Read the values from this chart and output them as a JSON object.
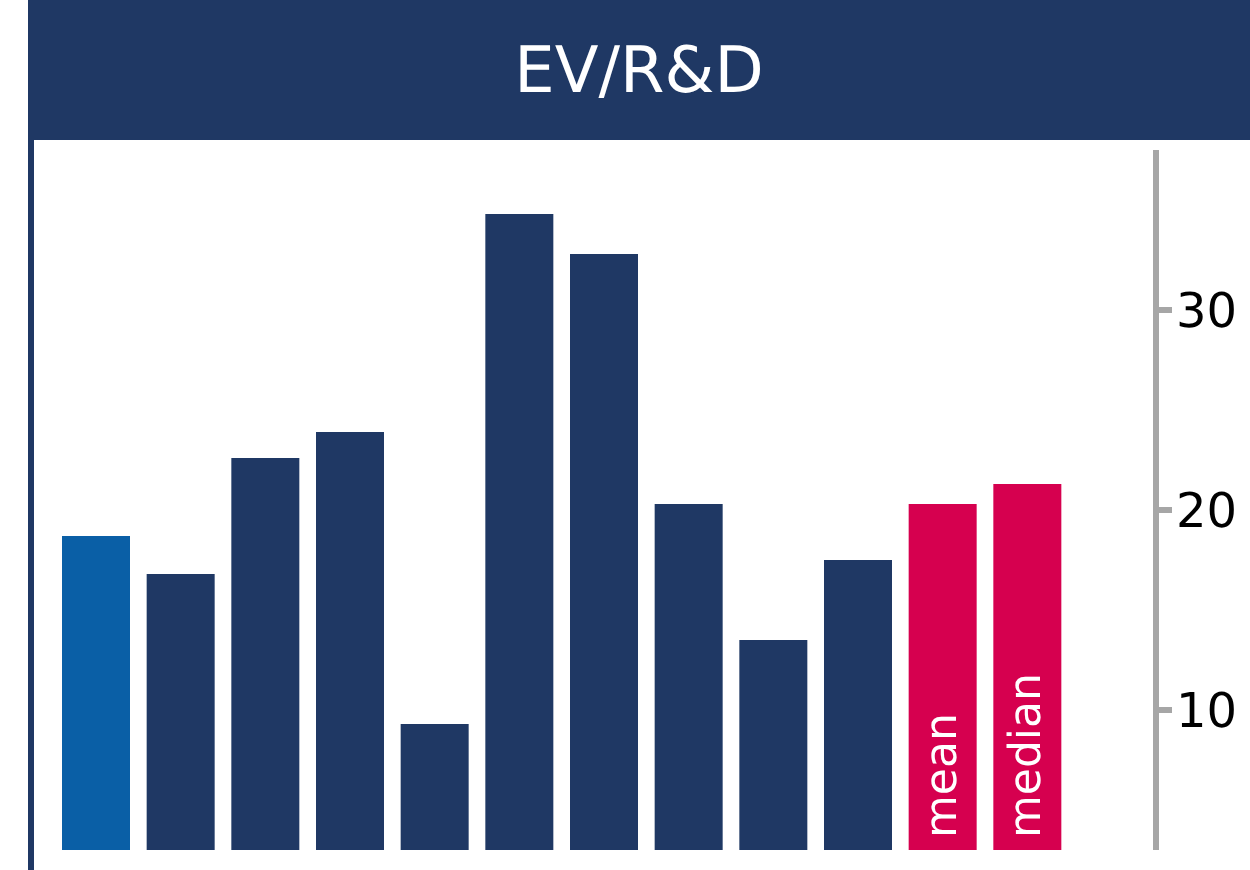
{
  "chart_data": {
    "type": "bar",
    "title": "EV/R&D",
    "categories": [
      null,
      null,
      null,
      null,
      null,
      null,
      null,
      null,
      null,
      null,
      "mean",
      "median"
    ],
    "values": [
      18.7,
      16.8,
      22.6,
      23.9,
      9.3,
      34.8,
      32.8,
      20.3,
      13.5,
      17.5,
      20.3,
      21.3
    ],
    "colors": [
      "#0a5fa6",
      "#1f3864",
      "#1f3864",
      "#1f3864",
      "#1f3864",
      "#1f3864",
      "#1f3864",
      "#1f3864",
      "#1f3864",
      "#1f3864",
      "#d6004f",
      "#d6004f"
    ],
    "ylim": [
      3,
      38
    ],
    "yticks": [
      10,
      20,
      30
    ],
    "grid": false,
    "legend": false
  }
}
